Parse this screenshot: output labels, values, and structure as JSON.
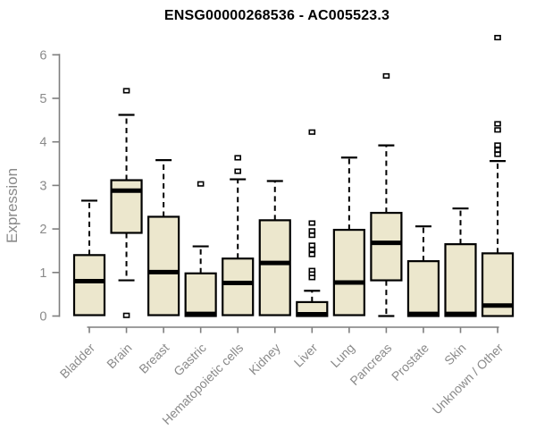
{
  "chart": {
    "title": "ENSG00000268536 - AC005523.3",
    "ylabel": "Expression"
  },
  "chart_data": {
    "type": "boxplot",
    "title": "ENSG00000268536 - AC005523.3",
    "xlabel": "",
    "ylabel": "Expression",
    "ylim": [
      0,
      6.5
    ],
    "yticks": [
      0,
      1,
      2,
      3,
      4,
      5,
      6
    ],
    "grid": false,
    "legend": "none",
    "colors": {
      "box_fill": "#ece7cd",
      "box_border": "#000000",
      "median": "#000000",
      "whisker": "#000000",
      "outlier_fill": "#ffffff",
      "outlier_border": "#000000",
      "axis_line": "#7f7f7f",
      "tick_label": "#8a8a8a",
      "title": "#000000"
    },
    "categories": [
      "Bladder",
      "Brain",
      "Breast",
      "Gastric",
      "Hematopoietic cells",
      "Kidney",
      "Liver",
      "Lung",
      "Pancreas",
      "Prostate",
      "Skin",
      "Unknown / Other"
    ],
    "series": [
      {
        "category": "Bladder",
        "whisker_low": 0.02,
        "q1": 0.02,
        "median": 0.8,
        "q3": 1.4,
        "whisker_high": 2.65,
        "outliers": []
      },
      {
        "category": "Brain",
        "whisker_low": 0.82,
        "q1": 1.91,
        "median": 2.88,
        "q3": 3.12,
        "whisker_high": 4.62,
        "outliers": [
          5.18,
          0.02
        ]
      },
      {
        "category": "Breast",
        "whisker_low": 0.02,
        "q1": 0.02,
        "median": 1.01,
        "q3": 2.28,
        "whisker_high": 3.58,
        "outliers": []
      },
      {
        "category": "Gastric",
        "whisker_low": 0.0,
        "q1": 0.0,
        "median": 0.05,
        "q3": 0.98,
        "whisker_high": 1.6,
        "outliers": [
          3.04
        ]
      },
      {
        "category": "Hematopoietic cells",
        "whisker_low": 0.02,
        "q1": 0.02,
        "median": 0.76,
        "q3": 1.32,
        "whisker_high": 3.14,
        "outliers": [
          3.64,
          3.33
        ]
      },
      {
        "category": "Kidney",
        "whisker_low": 0.02,
        "q1": 0.02,
        "median": 1.22,
        "q3": 2.2,
        "whisker_high": 3.1,
        "outliers": []
      },
      {
        "category": "Liver",
        "whisker_low": 0.0,
        "q1": 0.0,
        "median": 0.04,
        "q3": 0.32,
        "whisker_high": 0.58,
        "outliers": [
          4.23,
          2.14,
          1.96,
          1.86,
          1.63,
          1.53,
          1.42,
          1.05,
          0.97,
          0.89
        ]
      },
      {
        "category": "Lung",
        "whisker_low": 0.02,
        "q1": 0.02,
        "median": 0.77,
        "q3": 1.98,
        "whisker_high": 3.64,
        "outliers": []
      },
      {
        "category": "Pancreas",
        "whisker_low": 0.0,
        "q1": 0.82,
        "median": 1.68,
        "q3": 2.37,
        "whisker_high": 3.92,
        "outliers": [
          5.52
        ]
      },
      {
        "category": "Prostate",
        "whisker_low": 0.0,
        "q1": 0.0,
        "median": 0.05,
        "q3": 1.26,
        "whisker_high": 2.06,
        "outliers": []
      },
      {
        "category": "Skin",
        "whisker_low": 0.0,
        "q1": 0.0,
        "median": 0.05,
        "q3": 1.65,
        "whisker_high": 2.47,
        "outliers": []
      },
      {
        "category": "Unknown / Other",
        "whisker_low": 0.0,
        "q1": 0.0,
        "median": 0.24,
        "q3": 1.44,
        "whisker_high": 3.56,
        "outliers": [
          6.4,
          4.42,
          4.28,
          3.93,
          3.82,
          3.72
        ]
      }
    ]
  }
}
